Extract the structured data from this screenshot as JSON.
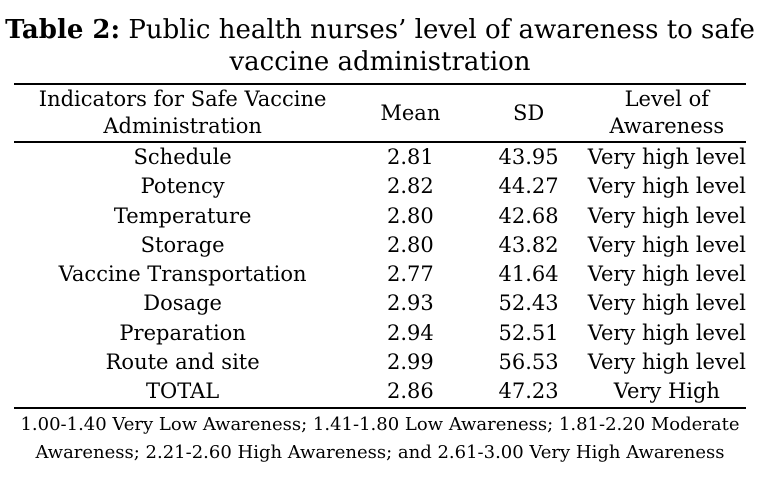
{
  "title": {
    "label": "Table 2:",
    "text": "Public health nurses’ level of awareness to safe vaccine administration"
  },
  "table": {
    "headers": {
      "indicator": "Indicators for Safe Vaccine Administration",
      "mean": "Mean",
      "sd": "SD",
      "level": "Level of Awareness"
    },
    "rows": [
      {
        "indicator": "Schedule",
        "mean": "2.81",
        "sd": "43.95",
        "level": "Very high level"
      },
      {
        "indicator": "Potency",
        "mean": "2.82",
        "sd": "44.27",
        "level": "Very high level"
      },
      {
        "indicator": "Temperature",
        "mean": "2.80",
        "sd": "42.68",
        "level": "Very high level"
      },
      {
        "indicator": "Storage",
        "mean": "2.80",
        "sd": "43.82",
        "level": "Very high level"
      },
      {
        "indicator": "Vaccine Transportation",
        "mean": "2.77",
        "sd": "41.64",
        "level": "Very high level"
      },
      {
        "indicator": "Dosage",
        "mean": "2.93",
        "sd": "52.43",
        "level": "Very high level"
      },
      {
        "indicator": "Preparation",
        "mean": "2.94",
        "sd": "52.51",
        "level": "Very high level"
      },
      {
        "indicator": "Route and site",
        "mean": "2.99",
        "sd": "56.53",
        "level": "Very high level"
      }
    ],
    "total": {
      "indicator": "TOTAL",
      "mean": "2.86",
      "sd": "47.23",
      "level": "Very High"
    }
  },
  "footnote": "1.00-1.40 Very Low Awareness; 1.41-1.80 Low Awareness; 1.81-2.20 Moderate Awareness; 2.21-2.60 High Awareness; and 2.61-3.00 Very High Awareness"
}
